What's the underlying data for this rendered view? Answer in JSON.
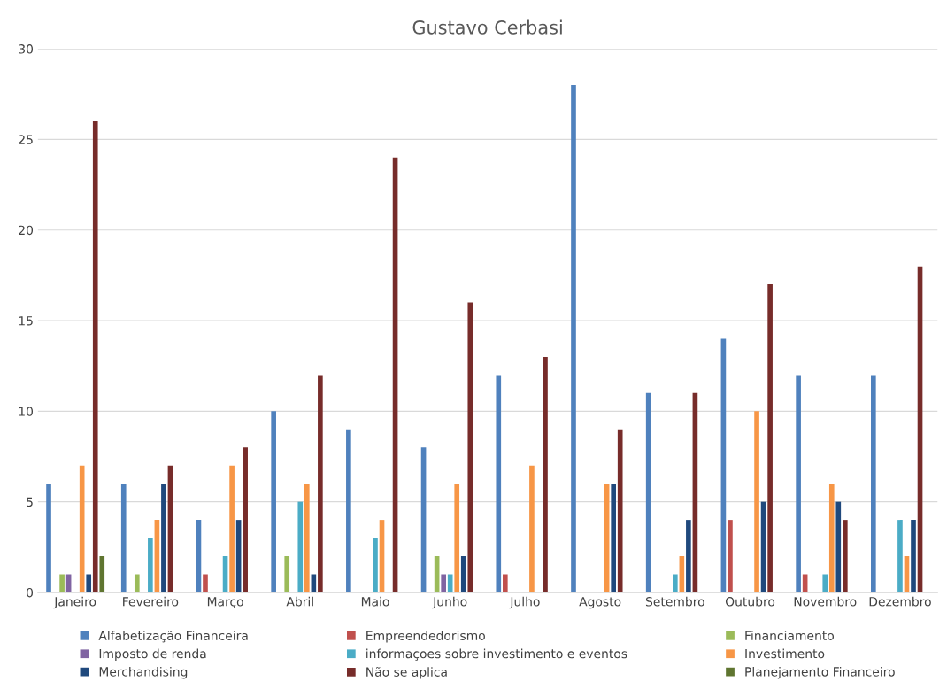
{
  "chart_data": {
    "type": "bar",
    "title": "Gustavo Cerbasi",
    "categories": [
      "Janeiro",
      "Fevereiro",
      "Março",
      "Abril",
      "Maio",
      "Junho",
      "Julho",
      "Agosto",
      "Setembro",
      "Outubro",
      "Novembro",
      "Dezembro"
    ],
    "series": [
      {
        "name": "Alfabetização Financeira",
        "color": "#4f81bd",
        "values": [
          6,
          6,
          4,
          10,
          9,
          8,
          12,
          28,
          11,
          14,
          12,
          12
        ]
      },
      {
        "name": "Empreendedorismo",
        "color": "#c0504d",
        "values": [
          null,
          null,
          1,
          null,
          null,
          null,
          1,
          null,
          null,
          4,
          1,
          null
        ]
      },
      {
        "name": "Financiamento",
        "color": "#9bbb59",
        "values": [
          1,
          1,
          null,
          2,
          null,
          2,
          null,
          null,
          null,
          null,
          null,
          null
        ]
      },
      {
        "name": "Imposto de renda",
        "color": "#8064a2",
        "values": [
          1,
          null,
          null,
          null,
          null,
          1,
          null,
          null,
          null,
          null,
          null,
          null
        ]
      },
      {
        "name": "informaçoes sobre investimento e eventos",
        "color": "#4bacc6",
        "values": [
          null,
          3,
          2,
          5,
          3,
          1,
          null,
          null,
          1,
          null,
          1,
          4
        ]
      },
      {
        "name": "Investimento",
        "color": "#f79646",
        "values": [
          7,
          4,
          7,
          6,
          4,
          6,
          7,
          6,
          2,
          10,
          6,
          2
        ]
      },
      {
        "name": "Merchandising",
        "color": "#1f497d",
        "values": [
          1,
          6,
          4,
          1,
          null,
          2,
          null,
          6,
          4,
          5,
          5,
          4
        ]
      },
      {
        "name": "Não se aplica",
        "color": "#772c2a",
        "values": [
          26,
          7,
          8,
          12,
          24,
          16,
          13,
          9,
          11,
          17,
          4,
          18
        ]
      },
      {
        "name": "Planejamento Financeiro",
        "color": "#5f7530",
        "values": [
          2,
          null,
          null,
          null,
          null,
          null,
          null,
          null,
          null,
          null,
          null,
          null
        ]
      }
    ],
    "ylim": [
      0,
      30
    ],
    "yticks": [
      0,
      5,
      10,
      15,
      20,
      25,
      30
    ],
    "grid": "y",
    "legend": "bottom"
  }
}
